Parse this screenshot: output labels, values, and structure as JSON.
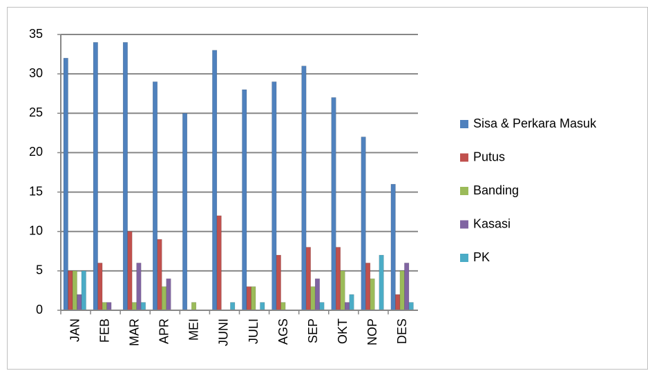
{
  "chart_data": {
    "type": "bar",
    "categories": [
      "JAN",
      "FEB",
      "MAR",
      "APR",
      "MEI",
      "JUNI",
      "JULI",
      "AGS",
      "SEP",
      "OKT",
      "NOP",
      "DES"
    ],
    "series": [
      {
        "name": "Sisa & Perkara Masuk",
        "color": "#4f81bd",
        "values": [
          32,
          34,
          34,
          29,
          25,
          33,
          28,
          29,
          31,
          27,
          22,
          16
        ]
      },
      {
        "name": "Putus",
        "color": "#c0504d",
        "values": [
          5,
          6,
          10,
          9,
          0,
          12,
          3,
          7,
          8,
          8,
          6,
          2
        ]
      },
      {
        "name": "Banding",
        "color": "#9bbb59",
        "values": [
          5,
          1,
          1,
          3,
          1,
          0,
          3,
          1,
          3,
          5,
          4,
          5
        ]
      },
      {
        "name": "Kasasi",
        "color": "#8064a2",
        "values": [
          2,
          1,
          6,
          4,
          0,
          0,
          0,
          0,
          4,
          1,
          0,
          6
        ]
      },
      {
        "name": "PK",
        "color": "#4bacc6",
        "values": [
          5,
          0,
          1,
          0,
          0,
          1,
          1,
          0,
          1,
          2,
          7,
          1
        ]
      }
    ],
    "ylim": [
      0,
      35
    ],
    "yticks": [
      0,
      5,
      10,
      15,
      20,
      25,
      30,
      35
    ],
    "grid": true,
    "legend": "right"
  }
}
